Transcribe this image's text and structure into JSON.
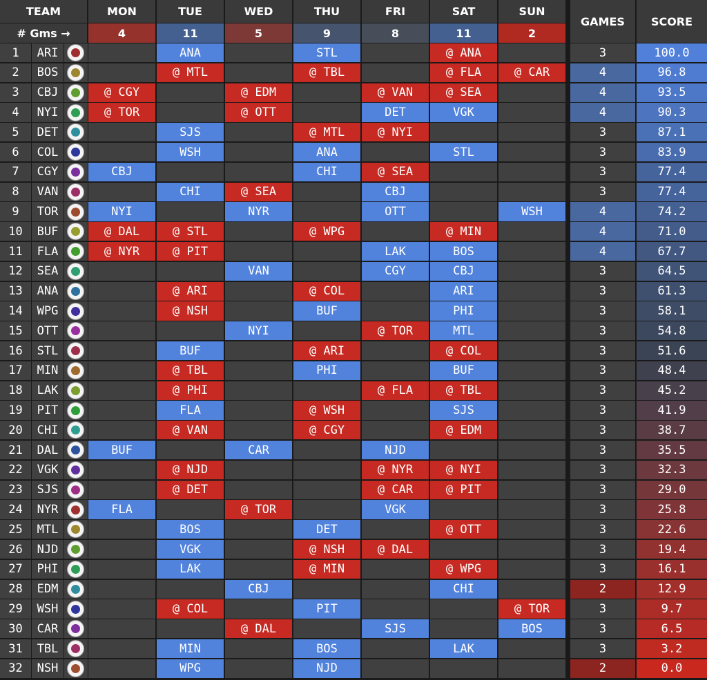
{
  "header": {
    "team": "TEAM",
    "days": [
      "MON",
      "TUE",
      "WED",
      "THU",
      "FRI",
      "SAT",
      "SUN"
    ],
    "games": "GAMES",
    "score": "SCORE",
    "gms_label": "# Gms →",
    "day_counts": [
      4,
      11,
      5,
      9,
      8,
      11,
      2
    ]
  },
  "table": {
    "rows": [
      {
        "rank": 1,
        "team": "ARI",
        "days": [
          null,
          "ANA",
          null,
          "STL",
          null,
          "@ ANA",
          null
        ],
        "games": 3,
        "score": "100.0"
      },
      {
        "rank": 2,
        "team": "BOS",
        "days": [
          null,
          "@ MTL",
          null,
          "@ TBL",
          null,
          "@ FLA",
          "@ CAR"
        ],
        "games": 4,
        "score": "96.8"
      },
      {
        "rank": 3,
        "team": "CBJ",
        "days": [
          "@ CGY",
          null,
          "@ EDM",
          null,
          "@ VAN",
          "@ SEA",
          null
        ],
        "games": 4,
        "score": "93.5"
      },
      {
        "rank": 4,
        "team": "NYI",
        "days": [
          "@ TOR",
          null,
          "@ OTT",
          null,
          "DET",
          "VGK",
          null
        ],
        "games": 4,
        "score": "90.3"
      },
      {
        "rank": 5,
        "team": "DET",
        "days": [
          null,
          "SJS",
          null,
          "@ MTL",
          "@ NYI",
          null,
          null
        ],
        "games": 3,
        "score": "87.1"
      },
      {
        "rank": 6,
        "team": "COL",
        "days": [
          null,
          "WSH",
          null,
          "ANA",
          null,
          "STL",
          null
        ],
        "games": 3,
        "score": "83.9"
      },
      {
        "rank": 7,
        "team": "CGY",
        "days": [
          "CBJ",
          null,
          null,
          "CHI",
          "@ SEA",
          null,
          null
        ],
        "games": 3,
        "score": "77.4"
      },
      {
        "rank": 8,
        "team": "VAN",
        "days": [
          null,
          "CHI",
          "@ SEA",
          null,
          "CBJ",
          null,
          null
        ],
        "games": 3,
        "score": "77.4"
      },
      {
        "rank": 9,
        "team": "TOR",
        "days": [
          "NYI",
          null,
          "NYR",
          null,
          "OTT",
          null,
          "WSH"
        ],
        "games": 4,
        "score": "74.2"
      },
      {
        "rank": 10,
        "team": "BUF",
        "days": [
          "@ DAL",
          "@ STL",
          null,
          "@ WPG",
          null,
          "@ MIN",
          null
        ],
        "games": 4,
        "score": "71.0"
      },
      {
        "rank": 11,
        "team": "FLA",
        "days": [
          "@ NYR",
          "@ PIT",
          null,
          null,
          "LAK",
          "BOS",
          null
        ],
        "games": 4,
        "score": "67.7"
      },
      {
        "rank": 12,
        "team": "SEA",
        "days": [
          null,
          null,
          "VAN",
          null,
          "CGY",
          "CBJ",
          null
        ],
        "games": 3,
        "score": "64.5"
      },
      {
        "rank": 13,
        "team": "ANA",
        "days": [
          null,
          "@ ARI",
          null,
          "@ COL",
          null,
          "ARI",
          null
        ],
        "games": 3,
        "score": "61.3"
      },
      {
        "rank": 14,
        "team": "WPG",
        "days": [
          null,
          "@ NSH",
          null,
          "BUF",
          null,
          "PHI",
          null
        ],
        "games": 3,
        "score": "58.1"
      },
      {
        "rank": 15,
        "team": "OTT",
        "days": [
          null,
          null,
          "NYI",
          null,
          "@ TOR",
          "MTL",
          null
        ],
        "games": 3,
        "score": "54.8"
      },
      {
        "rank": 16,
        "team": "STL",
        "days": [
          null,
          "BUF",
          null,
          "@ ARI",
          null,
          "@ COL",
          null
        ],
        "games": 3,
        "score": "51.6"
      },
      {
        "rank": 17,
        "team": "MIN",
        "days": [
          null,
          "@ TBL",
          null,
          "PHI",
          null,
          "BUF",
          null
        ],
        "games": 3,
        "score": "48.4"
      },
      {
        "rank": 18,
        "team": "LAK",
        "days": [
          null,
          "@ PHI",
          null,
          null,
          "@ FLA",
          "@ TBL",
          null
        ],
        "games": 3,
        "score": "45.2"
      },
      {
        "rank": 19,
        "team": "PIT",
        "days": [
          null,
          "FLA",
          null,
          "@ WSH",
          null,
          "SJS",
          null
        ],
        "games": 3,
        "score": "41.9"
      },
      {
        "rank": 20,
        "team": "CHI",
        "days": [
          null,
          "@ VAN",
          null,
          "@ CGY",
          null,
          "@ EDM",
          null
        ],
        "games": 3,
        "score": "38.7"
      },
      {
        "rank": 21,
        "team": "DAL",
        "days": [
          "BUF",
          null,
          "CAR",
          null,
          "NJD",
          null,
          null
        ],
        "games": 3,
        "score": "35.5"
      },
      {
        "rank": 22,
        "team": "VGK",
        "days": [
          null,
          "@ NJD",
          null,
          null,
          "@ NYR",
          "@ NYI",
          null
        ],
        "games": 3,
        "score": "32.3"
      },
      {
        "rank": 23,
        "team": "SJS",
        "days": [
          null,
          "@ DET",
          null,
          null,
          "@ CAR",
          "@ PIT",
          null
        ],
        "games": 3,
        "score": "29.0"
      },
      {
        "rank": 24,
        "team": "NYR",
        "days": [
          "FLA",
          null,
          "@ TOR",
          null,
          "VGK",
          null,
          null
        ],
        "games": 3,
        "score": "25.8"
      },
      {
        "rank": 25,
        "team": "MTL",
        "days": [
          null,
          "BOS",
          null,
          "DET",
          null,
          "@ OTT",
          null
        ],
        "games": 3,
        "score": "22.6"
      },
      {
        "rank": 26,
        "team": "NJD",
        "days": [
          null,
          "VGK",
          null,
          "@ NSH",
          "@ DAL",
          null,
          null
        ],
        "games": 3,
        "score": "19.4"
      },
      {
        "rank": 27,
        "team": "PHI",
        "days": [
          null,
          "LAK",
          null,
          "@ MIN",
          null,
          "@ WPG",
          null
        ],
        "games": 3,
        "score": "16.1"
      },
      {
        "rank": 28,
        "team": "EDM",
        "days": [
          null,
          null,
          "CBJ",
          null,
          null,
          "CHI",
          null
        ],
        "games": 2,
        "score": "12.9"
      },
      {
        "rank": 29,
        "team": "WSH",
        "days": [
          null,
          "@ COL",
          null,
          "PIT",
          null,
          null,
          "@ TOR"
        ],
        "games": 3,
        "score": "9.7"
      },
      {
        "rank": 30,
        "team": "CAR",
        "days": [
          null,
          null,
          "@ DAL",
          null,
          "SJS",
          null,
          "BOS"
        ],
        "games": 3,
        "score": "6.5"
      },
      {
        "rank": 31,
        "team": "TBL",
        "days": [
          null,
          "MIN",
          null,
          "BOS",
          null,
          "LAK",
          null
        ],
        "games": 3,
        "score": "3.2"
      },
      {
        "rank": 32,
        "team": "NSH",
        "days": [
          null,
          "WPG",
          null,
          "NJD",
          null,
          null,
          null
        ],
        "games": 2,
        "score": "0.0"
      }
    ]
  }
}
